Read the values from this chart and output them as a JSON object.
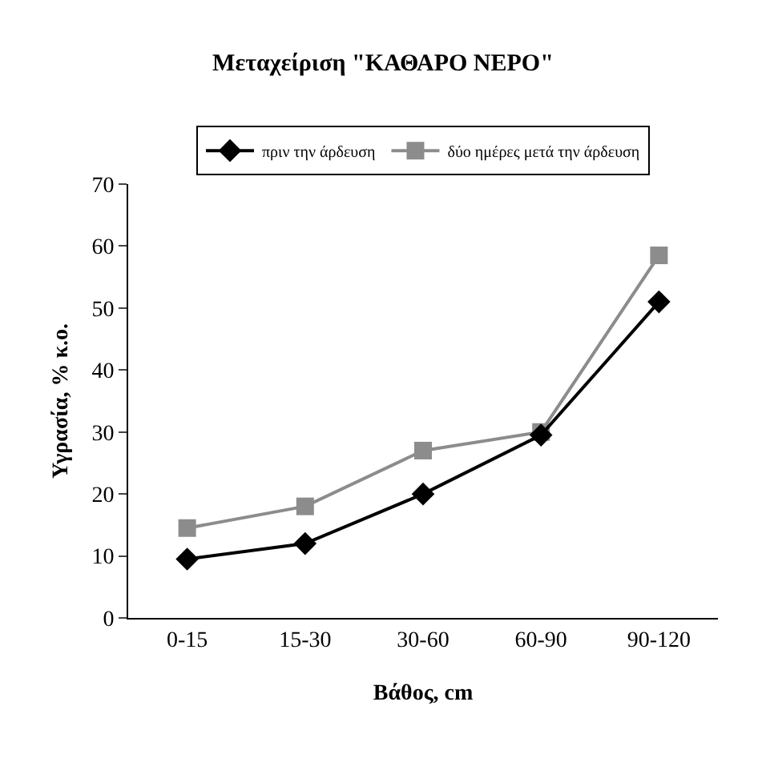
{
  "chart_data": {
    "type": "line",
    "title": "Μεταχείριση \"ΚΑΘΑΡΟ ΝΕΡΟ\"",
    "xlabel": "Βάθος, cm",
    "ylabel": "Υγρασία, % κ.ο.",
    "categories": [
      "0-15",
      "15-30",
      "30-60",
      "60-90",
      "90-120"
    ],
    "series": [
      {
        "name": "πριν την άρδευση",
        "color": "#000000",
        "marker": "diamond",
        "values": [
          9.5,
          12,
          20,
          29.5,
          51
        ]
      },
      {
        "name": "δύο ημέρες μετά την άρδευση",
        "color": "#8c8c8c",
        "marker": "square",
        "values": [
          14.5,
          18,
          27,
          30,
          58.5
        ]
      }
    ],
    "ylim": [
      0,
      70
    ],
    "yticks": [
      0,
      10,
      20,
      30,
      40,
      50,
      60,
      70
    ],
    "grid": false,
    "legend": "top",
    "line_style": "solid"
  }
}
